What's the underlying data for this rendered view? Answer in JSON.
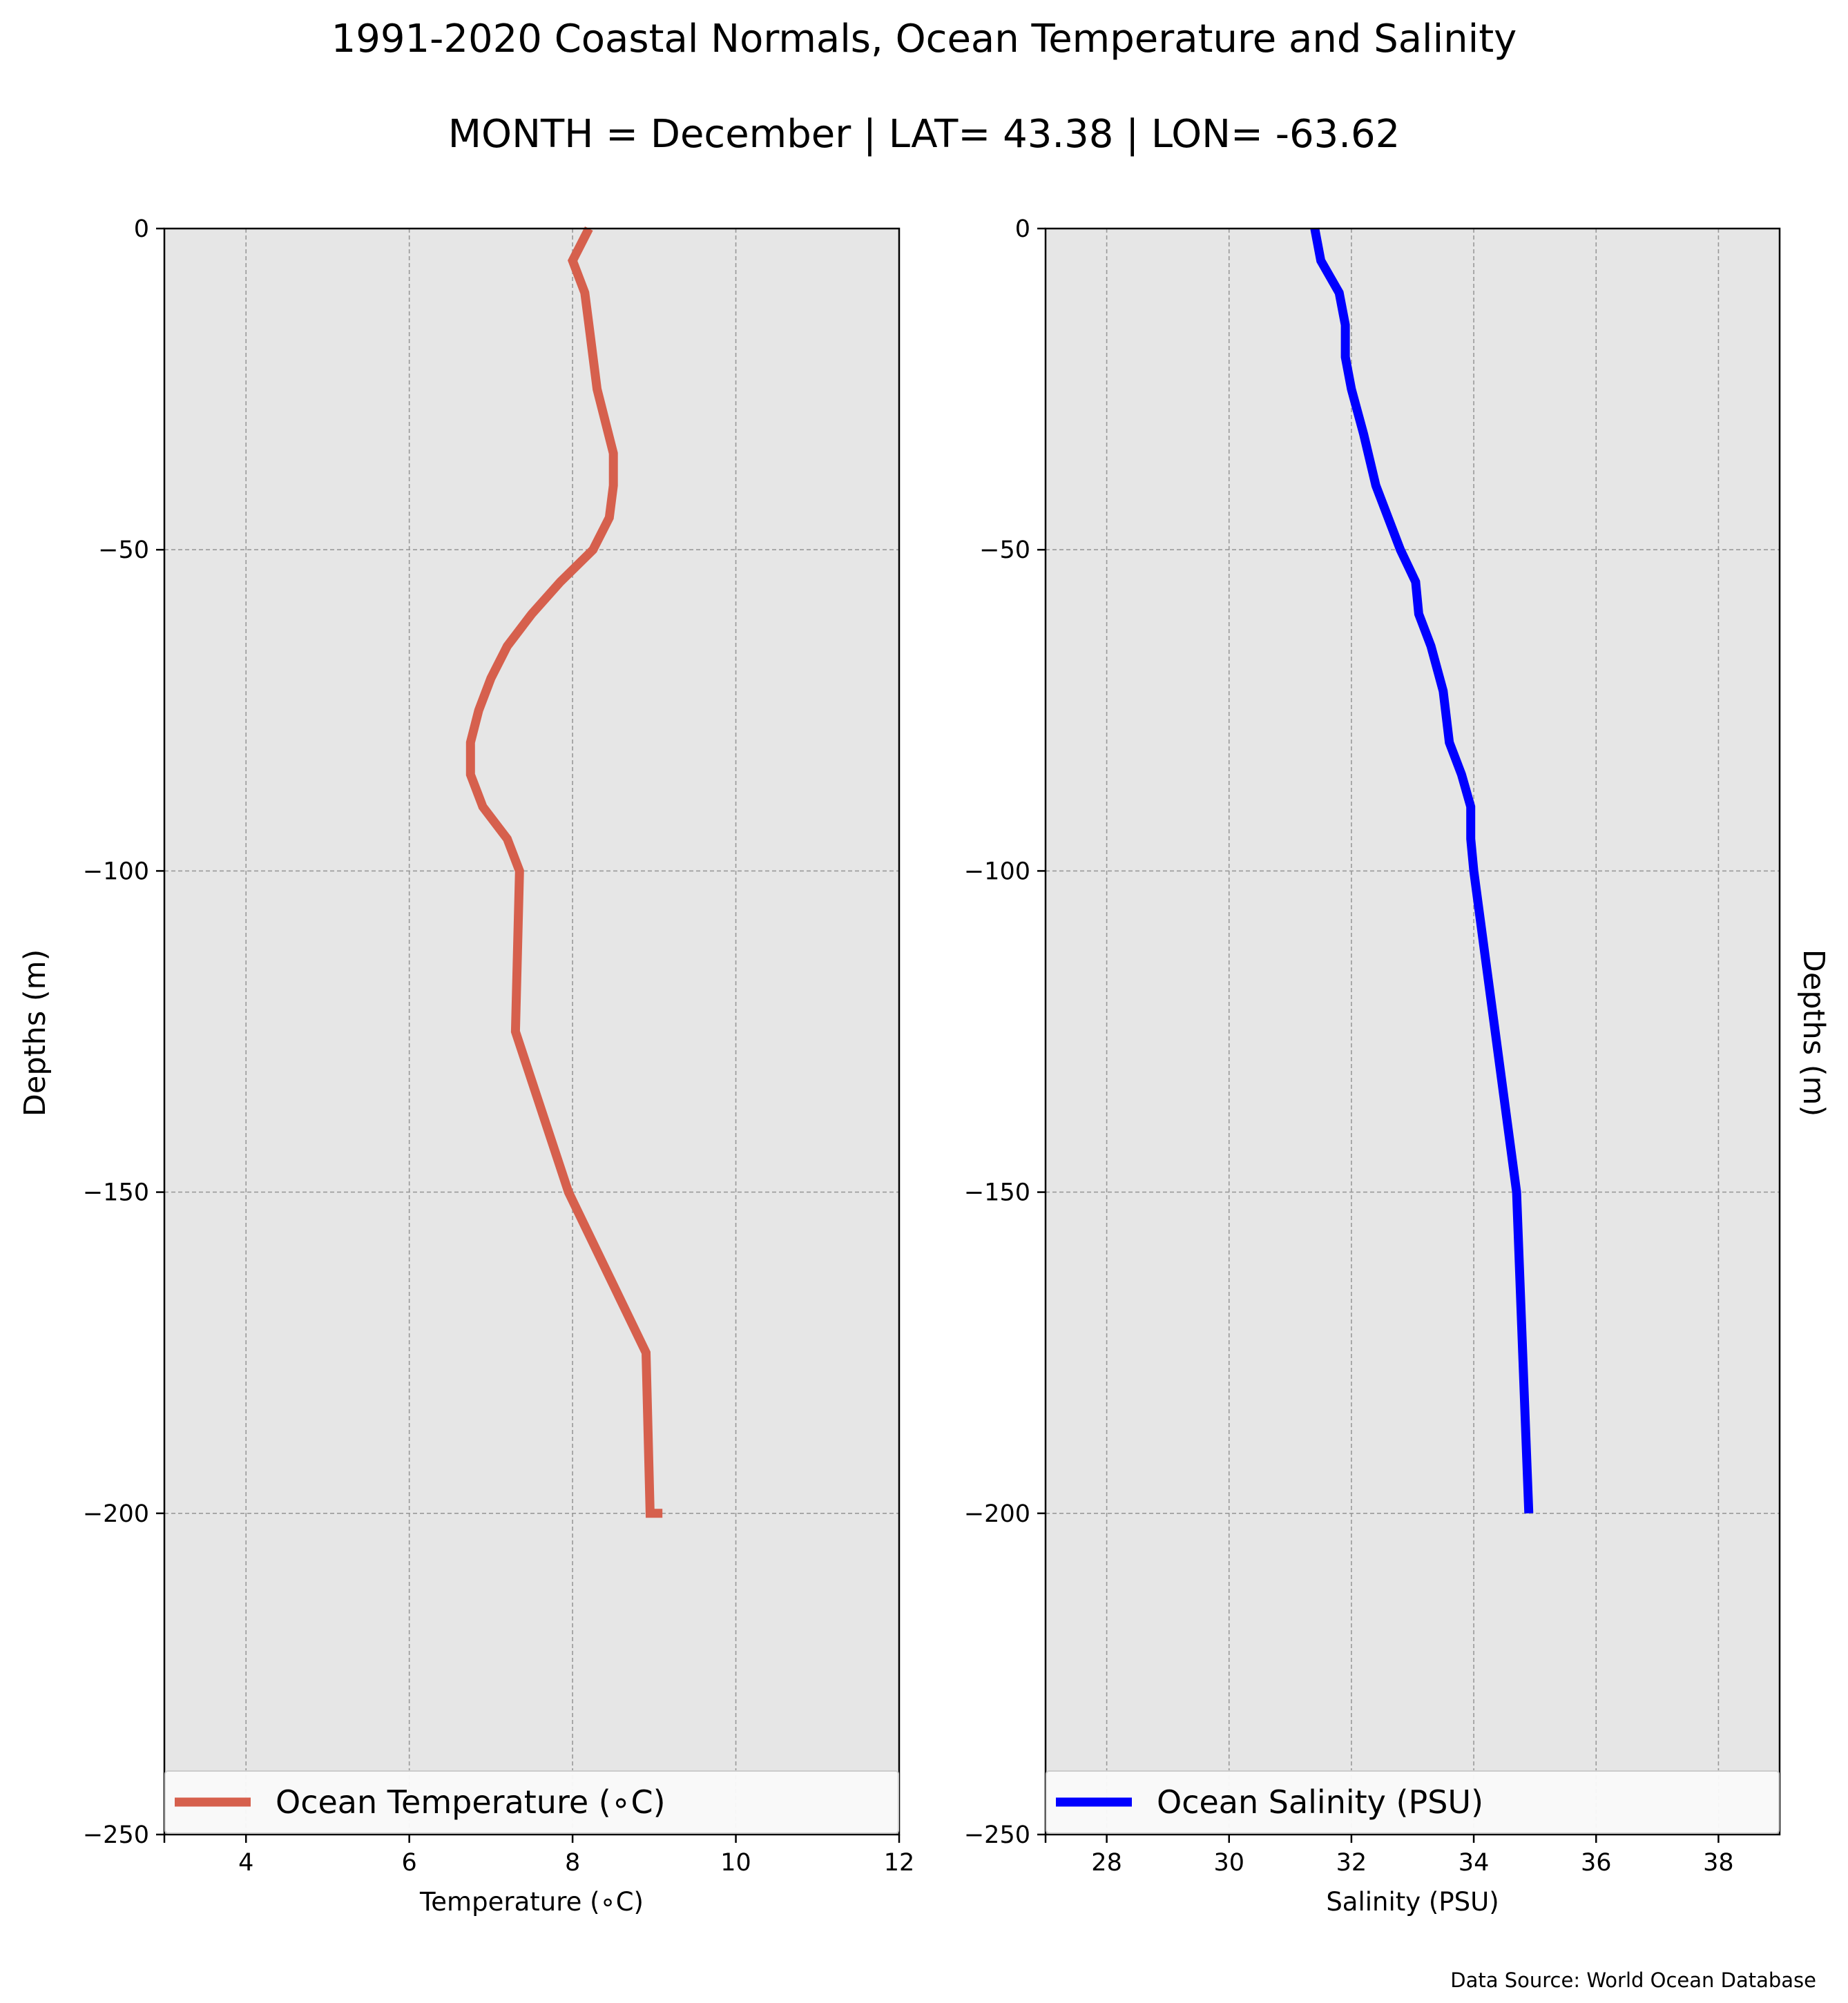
{
  "figure": {
    "title": "1991-2020 Coastal Normals, Ocean Temperature and Salinity",
    "subtitle": "MONTH = December | LAT= 43.38 | LON= -63.62",
    "source": "Data Source: World Ocean Database",
    "ylabel": "Depths (m)",
    "background_color": "#e6e6e6",
    "grid_color": "#999999"
  },
  "chart_data": [
    {
      "type": "line",
      "xlabel": "Temperature (∘C)",
      "ylabel": "Depths (m)",
      "xlim": [
        3,
        12
      ],
      "ylim": [
        -250,
        0
      ],
      "xticks": [
        4,
        6,
        8,
        10,
        12
      ],
      "xtick_labels": [
        "4",
        "6",
        "8",
        "10",
        "12"
      ],
      "yticks": [
        0,
        -50,
        -100,
        -150,
        -200,
        -250
      ],
      "ytick_labels": [
        "0",
        "−50",
        "−100",
        "−150",
        "−200",
        "−250"
      ],
      "grid": true,
      "legend_position": "lower center",
      "series": [
        {
          "name": "Ocean Temperature (∘C)",
          "color": "#d6604d",
          "x": [
            8.2,
            8.0,
            8.15,
            8.2,
            8.3,
            8.5,
            8.5,
            8.45,
            8.25,
            7.85,
            7.5,
            7.2,
            7.0,
            6.85,
            6.75,
            6.75,
            6.9,
            7.2,
            7.35,
            7.3,
            7.95,
            8.9,
            8.95,
            9.1
          ],
          "y": [
            0,
            -5,
            -10,
            -15,
            -25,
            -35,
            -40,
            -45,
            -50,
            -55,
            -60,
            -65,
            -70,
            -75,
            -80,
            -85,
            -90,
            -95,
            -100,
            -125,
            -150,
            -175,
            -200,
            -200
          ]
        }
      ]
    },
    {
      "type": "line",
      "xlabel": "Salinity (PSU)",
      "ylabel": "Depths (m)",
      "xlim": [
        27,
        39
      ],
      "ylim": [
        -250,
        0
      ],
      "xticks": [
        28,
        30,
        32,
        34,
        36,
        38
      ],
      "xtick_labels": [
        "28",
        "30",
        "32",
        "34",
        "36",
        "38"
      ],
      "yticks": [
        0,
        -50,
        -100,
        -150,
        -200,
        -250
      ],
      "ytick_labels": [
        "0",
        "−50",
        "−100",
        "−150",
        "−200",
        "−250"
      ],
      "grid": true,
      "legend_position": "lower center",
      "series": [
        {
          "name": "Ocean Salinity (PSU)",
          "color": "#0000ff",
          "x": [
            31.4,
            31.5,
            31.8,
            31.9,
            31.9,
            32.0,
            32.2,
            32.4,
            32.8,
            33.05,
            33.1,
            33.3,
            33.5,
            33.6,
            33.8,
            33.95,
            33.95,
            34.0,
            34.35,
            34.7,
            34.8,
            34.9
          ],
          "y": [
            0,
            -5,
            -10,
            -15,
            -20,
            -25,
            -32,
            -40,
            -50,
            -55,
            -60,
            -65,
            -72,
            -80,
            -85,
            -90,
            -95,
            -100,
            -125,
            -150,
            -175,
            -200
          ]
        }
      ]
    }
  ]
}
